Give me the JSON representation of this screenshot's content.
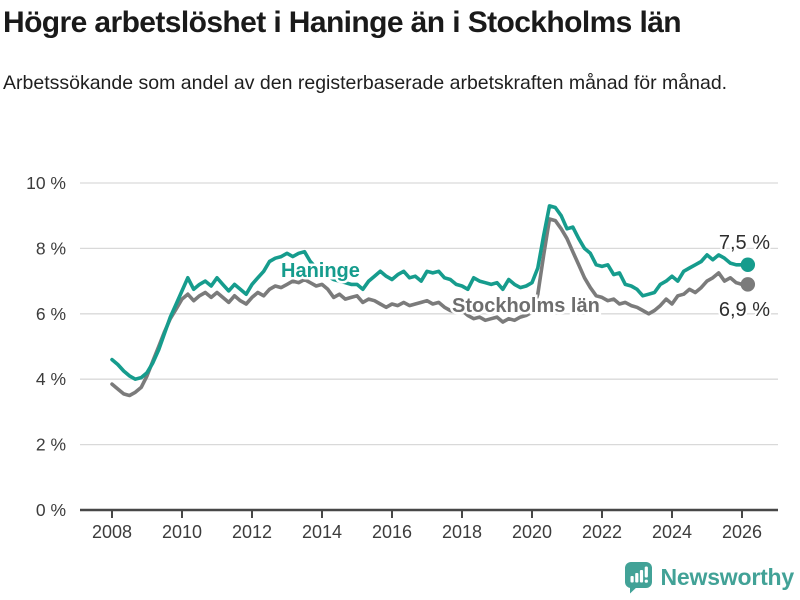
{
  "header": {
    "title": "Högre arbetslöshet i Haninge än i Stockholms län",
    "subtitle": "Arbetssökande som andel av den registerbaserade arbetskraften månad för månad."
  },
  "chart_data": {
    "type": "line",
    "title": "Högre arbetslöshet i Haninge än i Stockholms län",
    "subtitle": "Arbetssökande som andel av den registerbaserade arbetskraften månad för månad.",
    "unit": "%",
    "x_start_year": 2008,
    "points_per_year": 6,
    "x_axis": {
      "tick_values": [
        2008,
        2010,
        2012,
        2014,
        2016,
        2018,
        2020,
        2022,
        2024,
        2026
      ],
      "tick_labels": [
        "2008",
        "2010",
        "2012",
        "2014",
        "2016",
        "2018",
        "2020",
        "2022",
        "2024",
        "2026"
      ]
    },
    "y_axis": {
      "min": 0,
      "max": 10,
      "tick_values": [
        0,
        2,
        4,
        6,
        8,
        10
      ],
      "tick_labels": [
        "0 %",
        "2 %",
        "4 %",
        "6 %",
        "8 %",
        "10 %"
      ]
    },
    "grid": true,
    "legend_position": "inline-labels",
    "colors": {
      "haninge": "#169c8d",
      "stockholm_line": "#7b7b7b",
      "stockholm_label": "#6e6e6e",
      "gridline": "#d9d9d9",
      "axis": "#474747",
      "axis_text": "#3c3c3c",
      "end_label_text": "#2e2e2e"
    },
    "series": [
      {
        "name": "Haninge",
        "color_key": "haninge",
        "end_label": "7,5 %",
        "end_value": 7.5,
        "values": [
          4.6,
          4.45,
          4.25,
          4.1,
          4.0,
          4.05,
          4.2,
          4.5,
          4.9,
          5.4,
          5.9,
          6.3,
          6.7,
          7.1,
          6.75,
          6.9,
          7.0,
          6.85,
          7.1,
          6.9,
          6.7,
          6.9,
          6.75,
          6.6,
          6.9,
          7.1,
          7.3,
          7.6,
          7.7,
          7.75,
          7.85,
          7.75,
          7.85,
          7.9,
          7.6,
          7.4,
          7.25,
          7.15,
          7.05,
          7.0,
          6.95,
          6.9,
          6.9,
          6.75,
          7.0,
          7.15,
          7.3,
          7.15,
          7.05,
          7.2,
          7.3,
          7.1,
          7.15,
          7.0,
          7.3,
          7.25,
          7.3,
          7.1,
          7.05,
          6.9,
          6.85,
          6.75,
          7.1,
          7.0,
          6.95,
          6.9,
          6.95,
          6.75,
          7.05,
          6.9,
          6.8,
          6.85,
          6.95,
          7.4,
          8.4,
          9.3,
          9.25,
          9.0,
          8.6,
          8.65,
          8.3,
          8.0,
          7.85,
          7.5,
          7.45,
          7.5,
          7.2,
          7.25,
          6.9,
          6.85,
          6.75,
          6.55,
          6.6,
          6.65,
          6.9,
          7.0,
          7.15,
          7.0,
          7.3,
          7.4,
          7.5,
          7.6,
          7.8,
          7.65,
          7.8,
          7.7,
          7.55,
          7.5,
          7.5,
          7.5
        ]
      },
      {
        "name": "Stockholms län",
        "color_key": "stockholm_line",
        "end_label": "6,9 %",
        "end_value": 6.9,
        "values": [
          3.85,
          3.7,
          3.55,
          3.5,
          3.6,
          3.75,
          4.1,
          4.55,
          5.0,
          5.45,
          5.85,
          6.15,
          6.45,
          6.6,
          6.4,
          6.55,
          6.65,
          6.5,
          6.65,
          6.5,
          6.35,
          6.55,
          6.4,
          6.3,
          6.5,
          6.65,
          6.55,
          6.75,
          6.85,
          6.8,
          6.9,
          7.0,
          6.95,
          7.05,
          6.95,
          6.85,
          6.9,
          6.75,
          6.5,
          6.6,
          6.45,
          6.5,
          6.55,
          6.35,
          6.45,
          6.4,
          6.3,
          6.2,
          6.3,
          6.25,
          6.35,
          6.25,
          6.3,
          6.35,
          6.4,
          6.3,
          6.35,
          6.2,
          6.1,
          6.05,
          6.1,
          5.95,
          5.85,
          5.9,
          5.8,
          5.85,
          5.9,
          5.75,
          5.85,
          5.8,
          5.9,
          5.95,
          6.05,
          6.6,
          7.8,
          8.9,
          8.85,
          8.6,
          8.3,
          7.9,
          7.5,
          7.1,
          6.8,
          6.55,
          6.5,
          6.4,
          6.45,
          6.3,
          6.35,
          6.25,
          6.2,
          6.1,
          6.0,
          6.1,
          6.25,
          6.45,
          6.3,
          6.55,
          6.6,
          6.75,
          6.65,
          6.8,
          7.0,
          7.1,
          7.25,
          7.0,
          7.1,
          6.95,
          6.9,
          6.9
        ]
      }
    ]
  },
  "footer": {
    "brand": "Newsworthy"
  }
}
